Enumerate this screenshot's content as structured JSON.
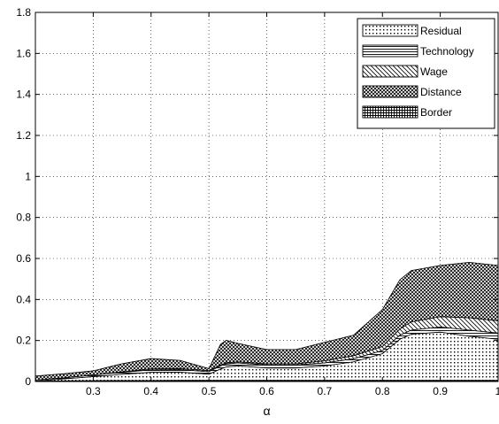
{
  "chart_data": {
    "type": "area",
    "stacked": true,
    "title": "",
    "xlabel": "α",
    "ylabel": "",
    "xlim": [
      0.2,
      1.0
    ],
    "ylim": [
      0,
      1.8
    ],
    "grid": true,
    "legend_position": "top-right",
    "x_ticks": [
      "0.3",
      "0.4",
      "0.5",
      "0.6",
      "0.7",
      "0.8",
      "0.9",
      "1"
    ],
    "y_ticks": [
      "0",
      "0.2",
      "0.4",
      "0.6",
      "0.8",
      "1",
      "1.2",
      "1.4",
      "1.6",
      "1.8"
    ],
    "x": [
      0.2,
      0.25,
      0.3,
      0.35,
      0.4,
      0.45,
      0.5,
      0.52,
      0.53,
      0.55,
      0.6,
      0.65,
      0.7,
      0.75,
      0.8,
      0.83,
      0.85,
      0.9,
      0.95,
      1.0
    ],
    "series": [
      {
        "name": "Border",
        "pattern": "grid",
        "values": [
          0.002,
          0.003,
          0.004,
          0.005,
          0.005,
          0.006,
          0.006,
          0.006,
          0.006,
          0.006,
          0.006,
          0.006,
          0.006,
          0.006,
          0.006,
          0.006,
          0.006,
          0.006,
          0.006,
          0.006
        ]
      },
      {
        "name": "Residual",
        "pattern": "dots",
        "values": [
          0.0,
          0.01,
          0.02,
          0.03,
          0.04,
          0.04,
          0.03,
          0.055,
          0.065,
          0.07,
          0.06,
          0.06,
          0.07,
          0.09,
          0.13,
          0.2,
          0.225,
          0.235,
          0.215,
          0.2
        ]
      },
      {
        "name": "Technology",
        "pattern": "horizontal",
        "values": [
          0.005,
          0.005,
          0.008,
          0.01,
          0.012,
          0.012,
          0.012,
          0.015,
          0.015,
          0.015,
          0.015,
          0.015,
          0.015,
          0.015,
          0.015,
          0.02,
          0.02,
          0.025,
          0.03,
          0.03
        ]
      },
      {
        "name": "Wage",
        "pattern": "diagonal",
        "values": [
          0.0,
          0.0,
          0.0,
          0.002,
          0.005,
          0.005,
          0.005,
          0.005,
          0.005,
          0.005,
          0.005,
          0.005,
          0.01,
          0.015,
          0.02,
          0.03,
          0.04,
          0.05,
          0.06,
          0.06
        ]
      },
      {
        "name": "Distance",
        "pattern": "crosshatch",
        "values": [
          0.02,
          0.02,
          0.02,
          0.04,
          0.05,
          0.04,
          0.01,
          0.1,
          0.11,
          0.09,
          0.07,
          0.07,
          0.09,
          0.1,
          0.18,
          0.24,
          0.25,
          0.25,
          0.27,
          0.27
        ]
      }
    ],
    "legend_order": [
      "Residual",
      "Technology",
      "Wage",
      "Distance",
      "Border"
    ]
  }
}
